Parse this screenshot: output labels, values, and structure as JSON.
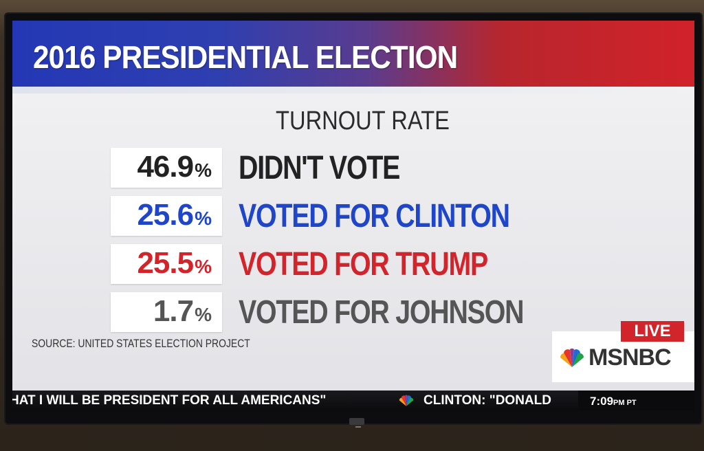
{
  "headline": "2016 PRESIDENTIAL ELECTION",
  "subtitle": "TURNOUT RATE",
  "rows": [
    {
      "value": "46.9",
      "unit": "%",
      "label": "DIDN'T VOTE",
      "color": "#222222"
    },
    {
      "value": "25.6",
      "unit": "%",
      "label": "VOTED FOR CLINTON",
      "color": "#1f45c8"
    },
    {
      "value": "25.5",
      "unit": "%",
      "label": "VOTED FOR TRUMP",
      "color": "#d1242b"
    },
    {
      "value": "1.7",
      "unit": "%",
      "label": "VOTED FOR JOHNSON",
      "color": "#555555"
    }
  ],
  "source": "SOURCE: UNITED STATES ELECTION PROJECT",
  "badge": {
    "live": "LIVE",
    "network": "MSNBC"
  },
  "ticker": {
    "left_text": "HAT I WILL BE PRESIDENT FOR ALL AMERICANS\"",
    "right_text": "CLINTON: \"DONALD",
    "time": "7:09",
    "ampm": "PM PT"
  },
  "colors": {
    "banner_blue": "#2438b5",
    "banner_red": "#d1222a",
    "live_red": "#d1242b"
  },
  "icons": [
    "nbc-peacock-icon"
  ]
}
